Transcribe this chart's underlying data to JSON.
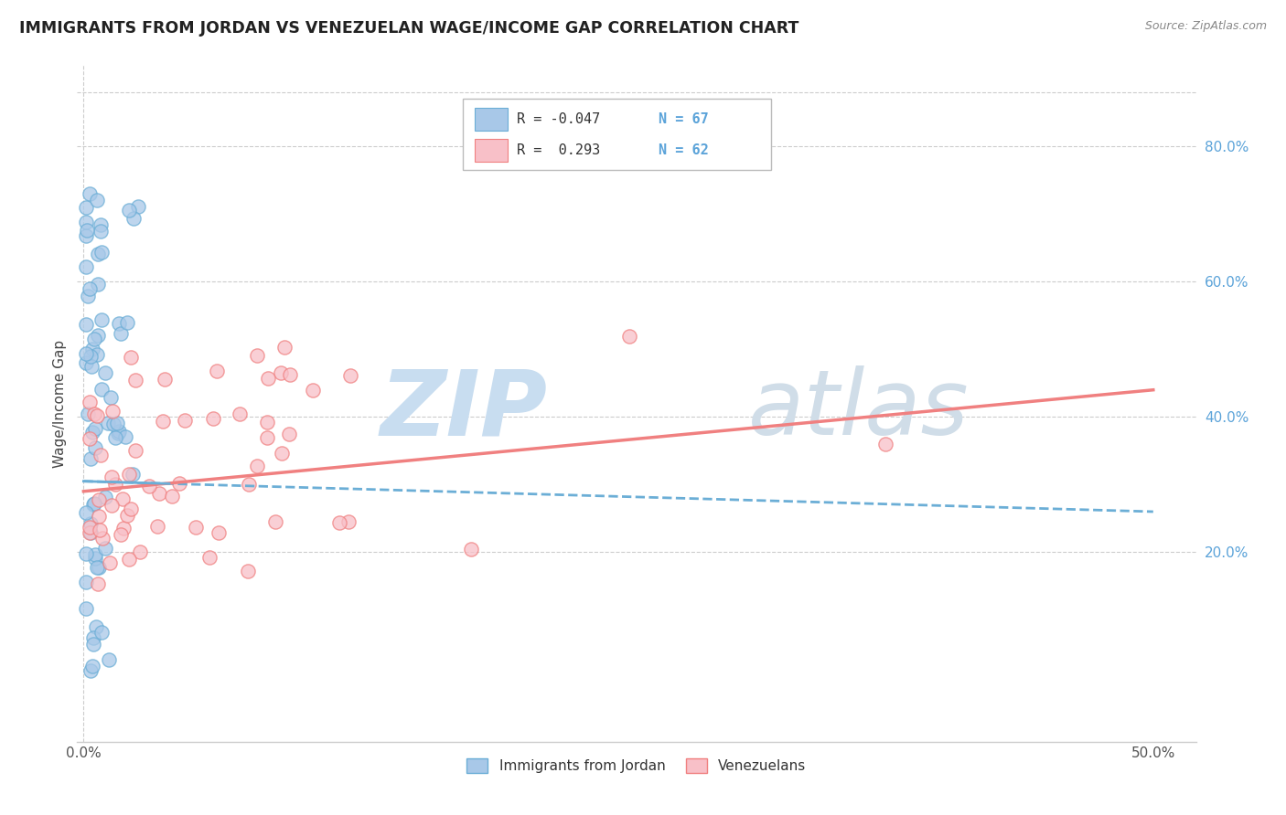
{
  "title": "IMMIGRANTS FROM JORDAN VS VENEZUELAN WAGE/INCOME GAP CORRELATION CHART",
  "source": "Source: ZipAtlas.com",
  "ylabel": "Wage/Income Gap",
  "xlim": [
    -0.003,
    0.52
  ],
  "ylim": [
    -0.08,
    0.92
  ],
  "xtick_positions": [
    0.0,
    0.1,
    0.2,
    0.3,
    0.4,
    0.5
  ],
  "xticklabels": [
    "0.0%",
    "",
    "",
    "",
    "",
    "50.0%"
  ],
  "ytick_right_positions": [
    0.2,
    0.4,
    0.6,
    0.8
  ],
  "ytick_right_labels": [
    "20.0%",
    "40.0%",
    "60.0%",
    "80.0%"
  ],
  "jordan_color": "#6baed6",
  "jordan_fill": "#a8c8e8",
  "venezuelan_color": "#f08080",
  "venezuelan_fill": "#f8c0c8",
  "jordan_R": -0.047,
  "jordan_N": 67,
  "venezuelan_R": 0.293,
  "venezuelan_N": 62,
  "watermark_zip_color": "#c8ddf0",
  "watermark_atlas_color": "#d0dde8",
  "grid_color": "#cccccc",
  "title_color": "#222222",
  "source_color": "#888888",
  "right_tick_color": "#5ba3d9",
  "jordan_line_start_y": 0.305,
  "jordan_line_end_y": 0.26,
  "jordan_line_start_x": 0.0,
  "jordan_line_end_x": 0.5,
  "venezuelan_line_start_y": 0.29,
  "venezuelan_line_end_y": 0.44,
  "venezuelan_line_start_x": 0.0,
  "venezuelan_line_end_x": 0.5
}
